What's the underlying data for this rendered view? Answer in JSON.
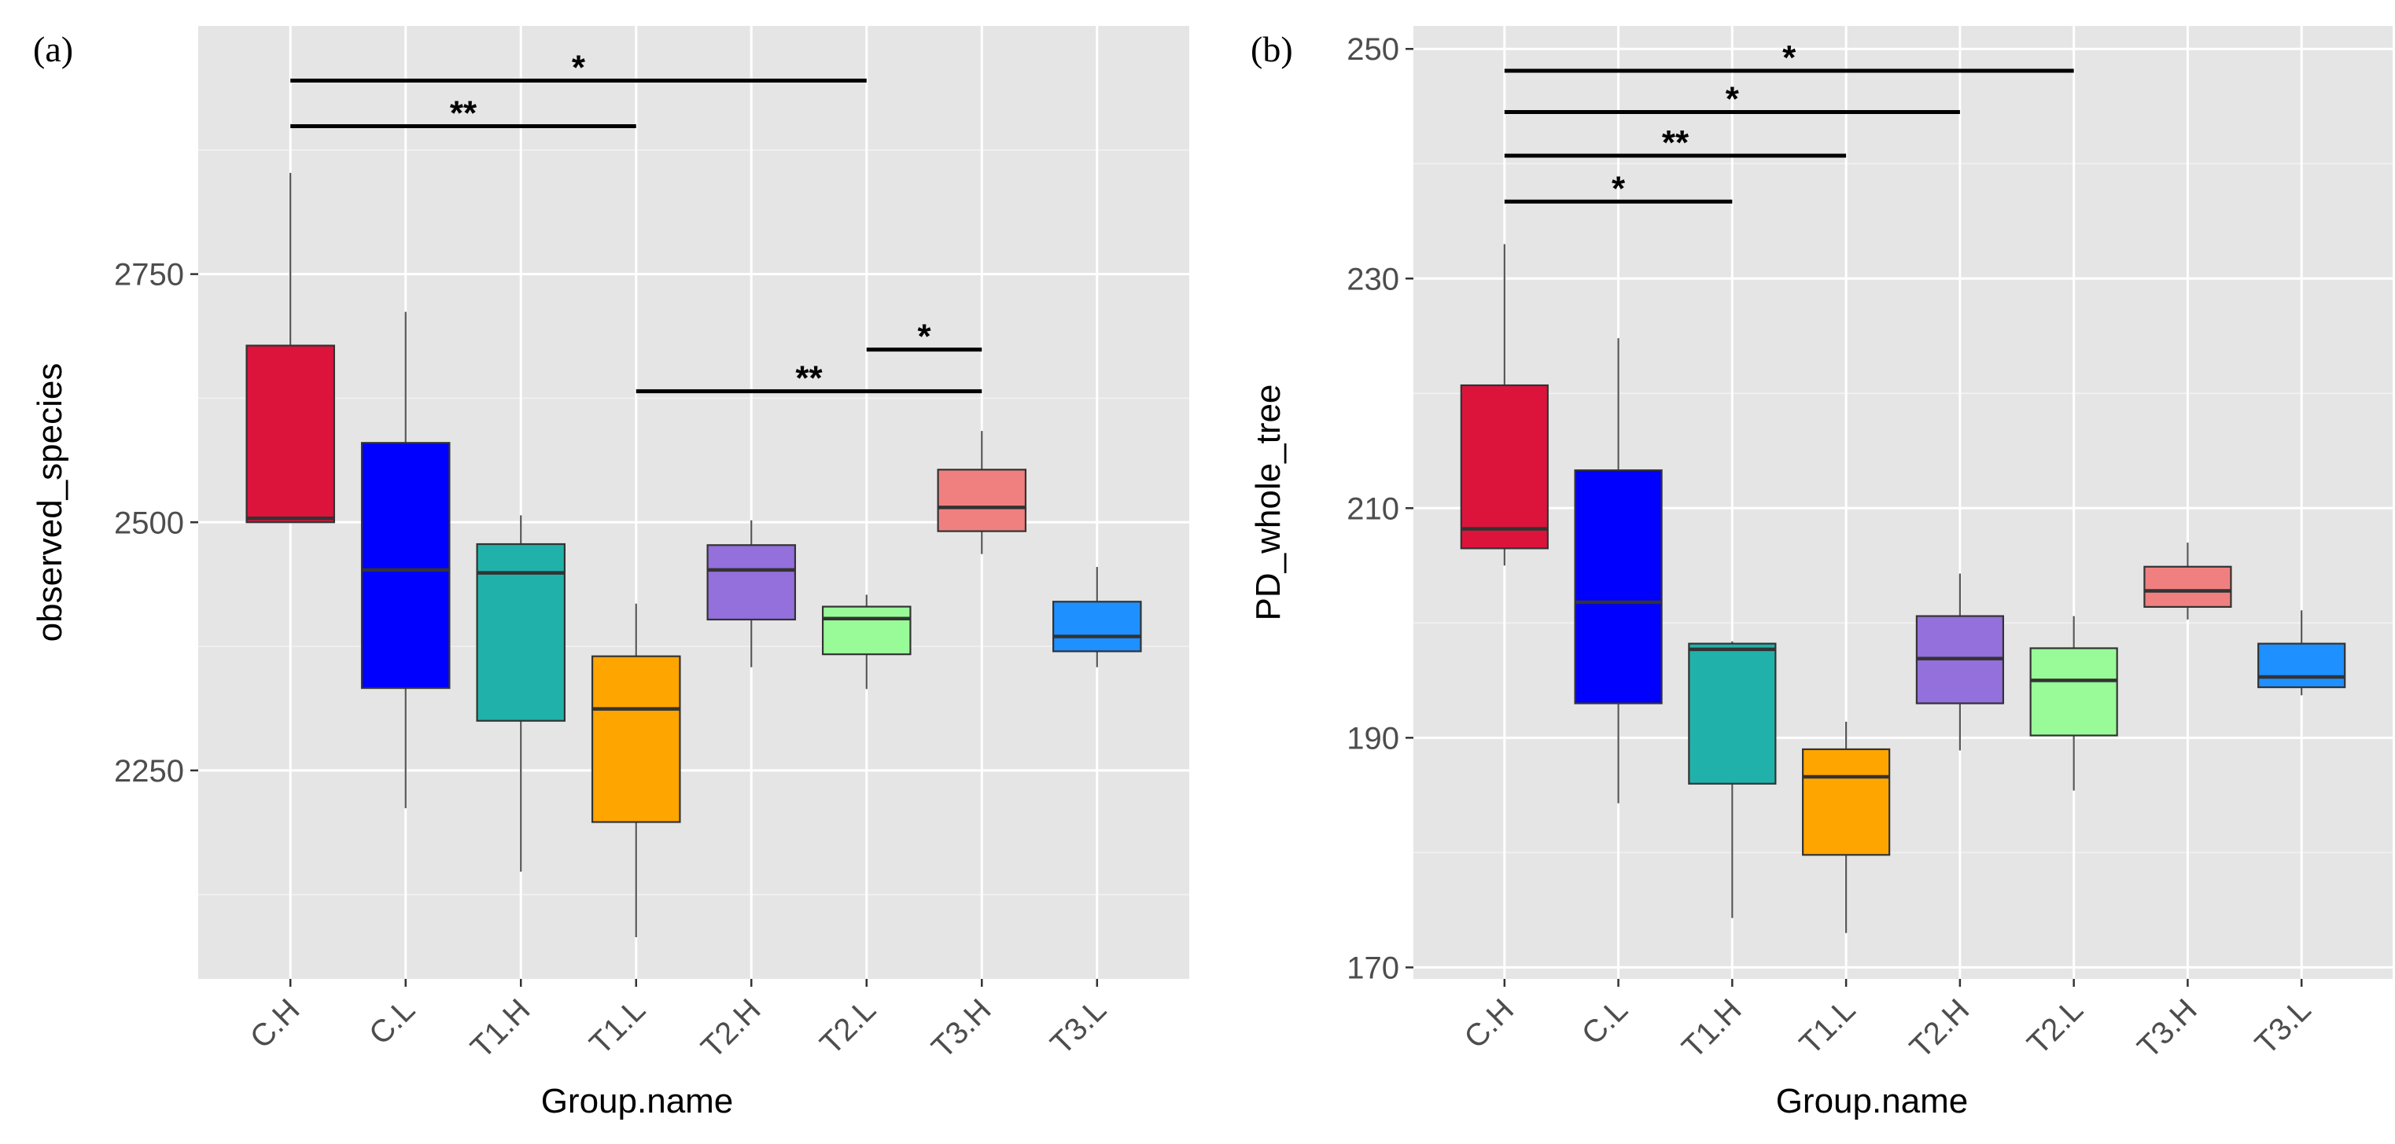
{
  "chart_data": [
    {
      "type": "box",
      "panel_label": "(a)",
      "xlabel": "Group.name",
      "ylabel": "observed_species",
      "ylim": [
        2040,
        3000
      ],
      "yticks": [
        2250,
        2500,
        2750
      ],
      "grid": true,
      "categories": [
        "C.H",
        "C.L",
        "T1.H",
        "T1.L",
        "T2.H",
        "T2.L",
        "T3.H",
        "T3.L"
      ],
      "colors": [
        "#dc143c",
        "#0000ff",
        "#20b2aa",
        "#ffa500",
        "#9370db",
        "#98fb98",
        "#f08080",
        "#1e90ff"
      ],
      "boxes": [
        {
          "min": 2500,
          "q1": 2500,
          "median": 2504,
          "q3": 2678,
          "max": 2852
        },
        {
          "min": 2212,
          "q1": 2333,
          "median": 2452,
          "q3": 2580,
          "max": 2712
        },
        {
          "min": 2148,
          "q1": 2300,
          "median": 2449,
          "q3": 2478,
          "max": 2507
        },
        {
          "min": 2082,
          "q1": 2198,
          "median": 2312,
          "q3": 2365,
          "max": 2418
        },
        {
          "min": 2354,
          "q1": 2402,
          "median": 2452,
          "q3": 2477,
          "max": 2502
        },
        {
          "min": 2332,
          "q1": 2367,
          "median": 2403,
          "q3": 2415,
          "max": 2427
        },
        {
          "min": 2468,
          "q1": 2491,
          "median": 2515,
          "q3": 2553,
          "max": 2592
        },
        {
          "min": 2354,
          "q1": 2370,
          "median": 2385,
          "q3": 2420,
          "max": 2455
        }
      ],
      "significance": [
        {
          "from": "C.H",
          "to": "T2.L",
          "label": "*",
          "y": 2945
        },
        {
          "from": "C.H",
          "to": "T1.L",
          "label": "**",
          "y": 2899
        },
        {
          "from": "T2.L",
          "to": "T3.H",
          "label": "*",
          "y": 2674
        },
        {
          "from": "T1.L",
          "to": "T3.H",
          "label": "**",
          "y": 2632
        }
      ]
    },
    {
      "type": "box",
      "panel_label": "(b)",
      "xlabel": "Group.name",
      "ylabel": "PD_whole_tree",
      "ylim": [
        169,
        252
      ],
      "yticks": [
        170,
        190,
        210,
        230,
        250
      ],
      "grid": true,
      "categories": [
        "C.H",
        "C.L",
        "T1.H",
        "T1.L",
        "T2.H",
        "T2.L",
        "T3.H",
        "T3.L"
      ],
      "colors": [
        "#dc143c",
        "#0000ff",
        "#20b2aa",
        "#ffa500",
        "#9370db",
        "#98fb98",
        "#f08080",
        "#1e90ff"
      ],
      "boxes": [
        {
          "min": 205,
          "q1": 206.5,
          "median": 208.2,
          "q3": 220.7,
          "max": 233
        },
        {
          "min": 184.3,
          "q1": 193,
          "median": 201.8,
          "q3": 213.3,
          "max": 224.8
        },
        {
          "min": 174.3,
          "q1": 186,
          "median": 197.7,
          "q3": 198.2,
          "max": 198.4
        },
        {
          "min": 173,
          "q1": 179.8,
          "median": 186.6,
          "q3": 189,
          "max": 191.4
        },
        {
          "min": 188.9,
          "q1": 193,
          "median": 196.9,
          "q3": 200.6,
          "max": 204.3
        },
        {
          "min": 185.4,
          "q1": 190.2,
          "median": 195,
          "q3": 197.8,
          "max": 200.6
        },
        {
          "min": 200.3,
          "q1": 201.4,
          "median": 202.8,
          "q3": 204.9,
          "max": 207
        },
        {
          "min": 193.7,
          "q1": 194.4,
          "median": 195.3,
          "q3": 198.2,
          "max": 201.1
        }
      ],
      "significance": [
        {
          "from": "C.H",
          "to": "T2.L",
          "label": "*",
          "y": 248.1
        },
        {
          "from": "C.H",
          "to": "T2.H",
          "label": "*",
          "y": 244.5
        },
        {
          "from": "C.H",
          "to": "T1.L",
          "label": "**",
          "y": 240.7
        },
        {
          "from": "C.H",
          "to": "T1.H",
          "label": "*",
          "y": 236.7
        }
      ]
    }
  ]
}
